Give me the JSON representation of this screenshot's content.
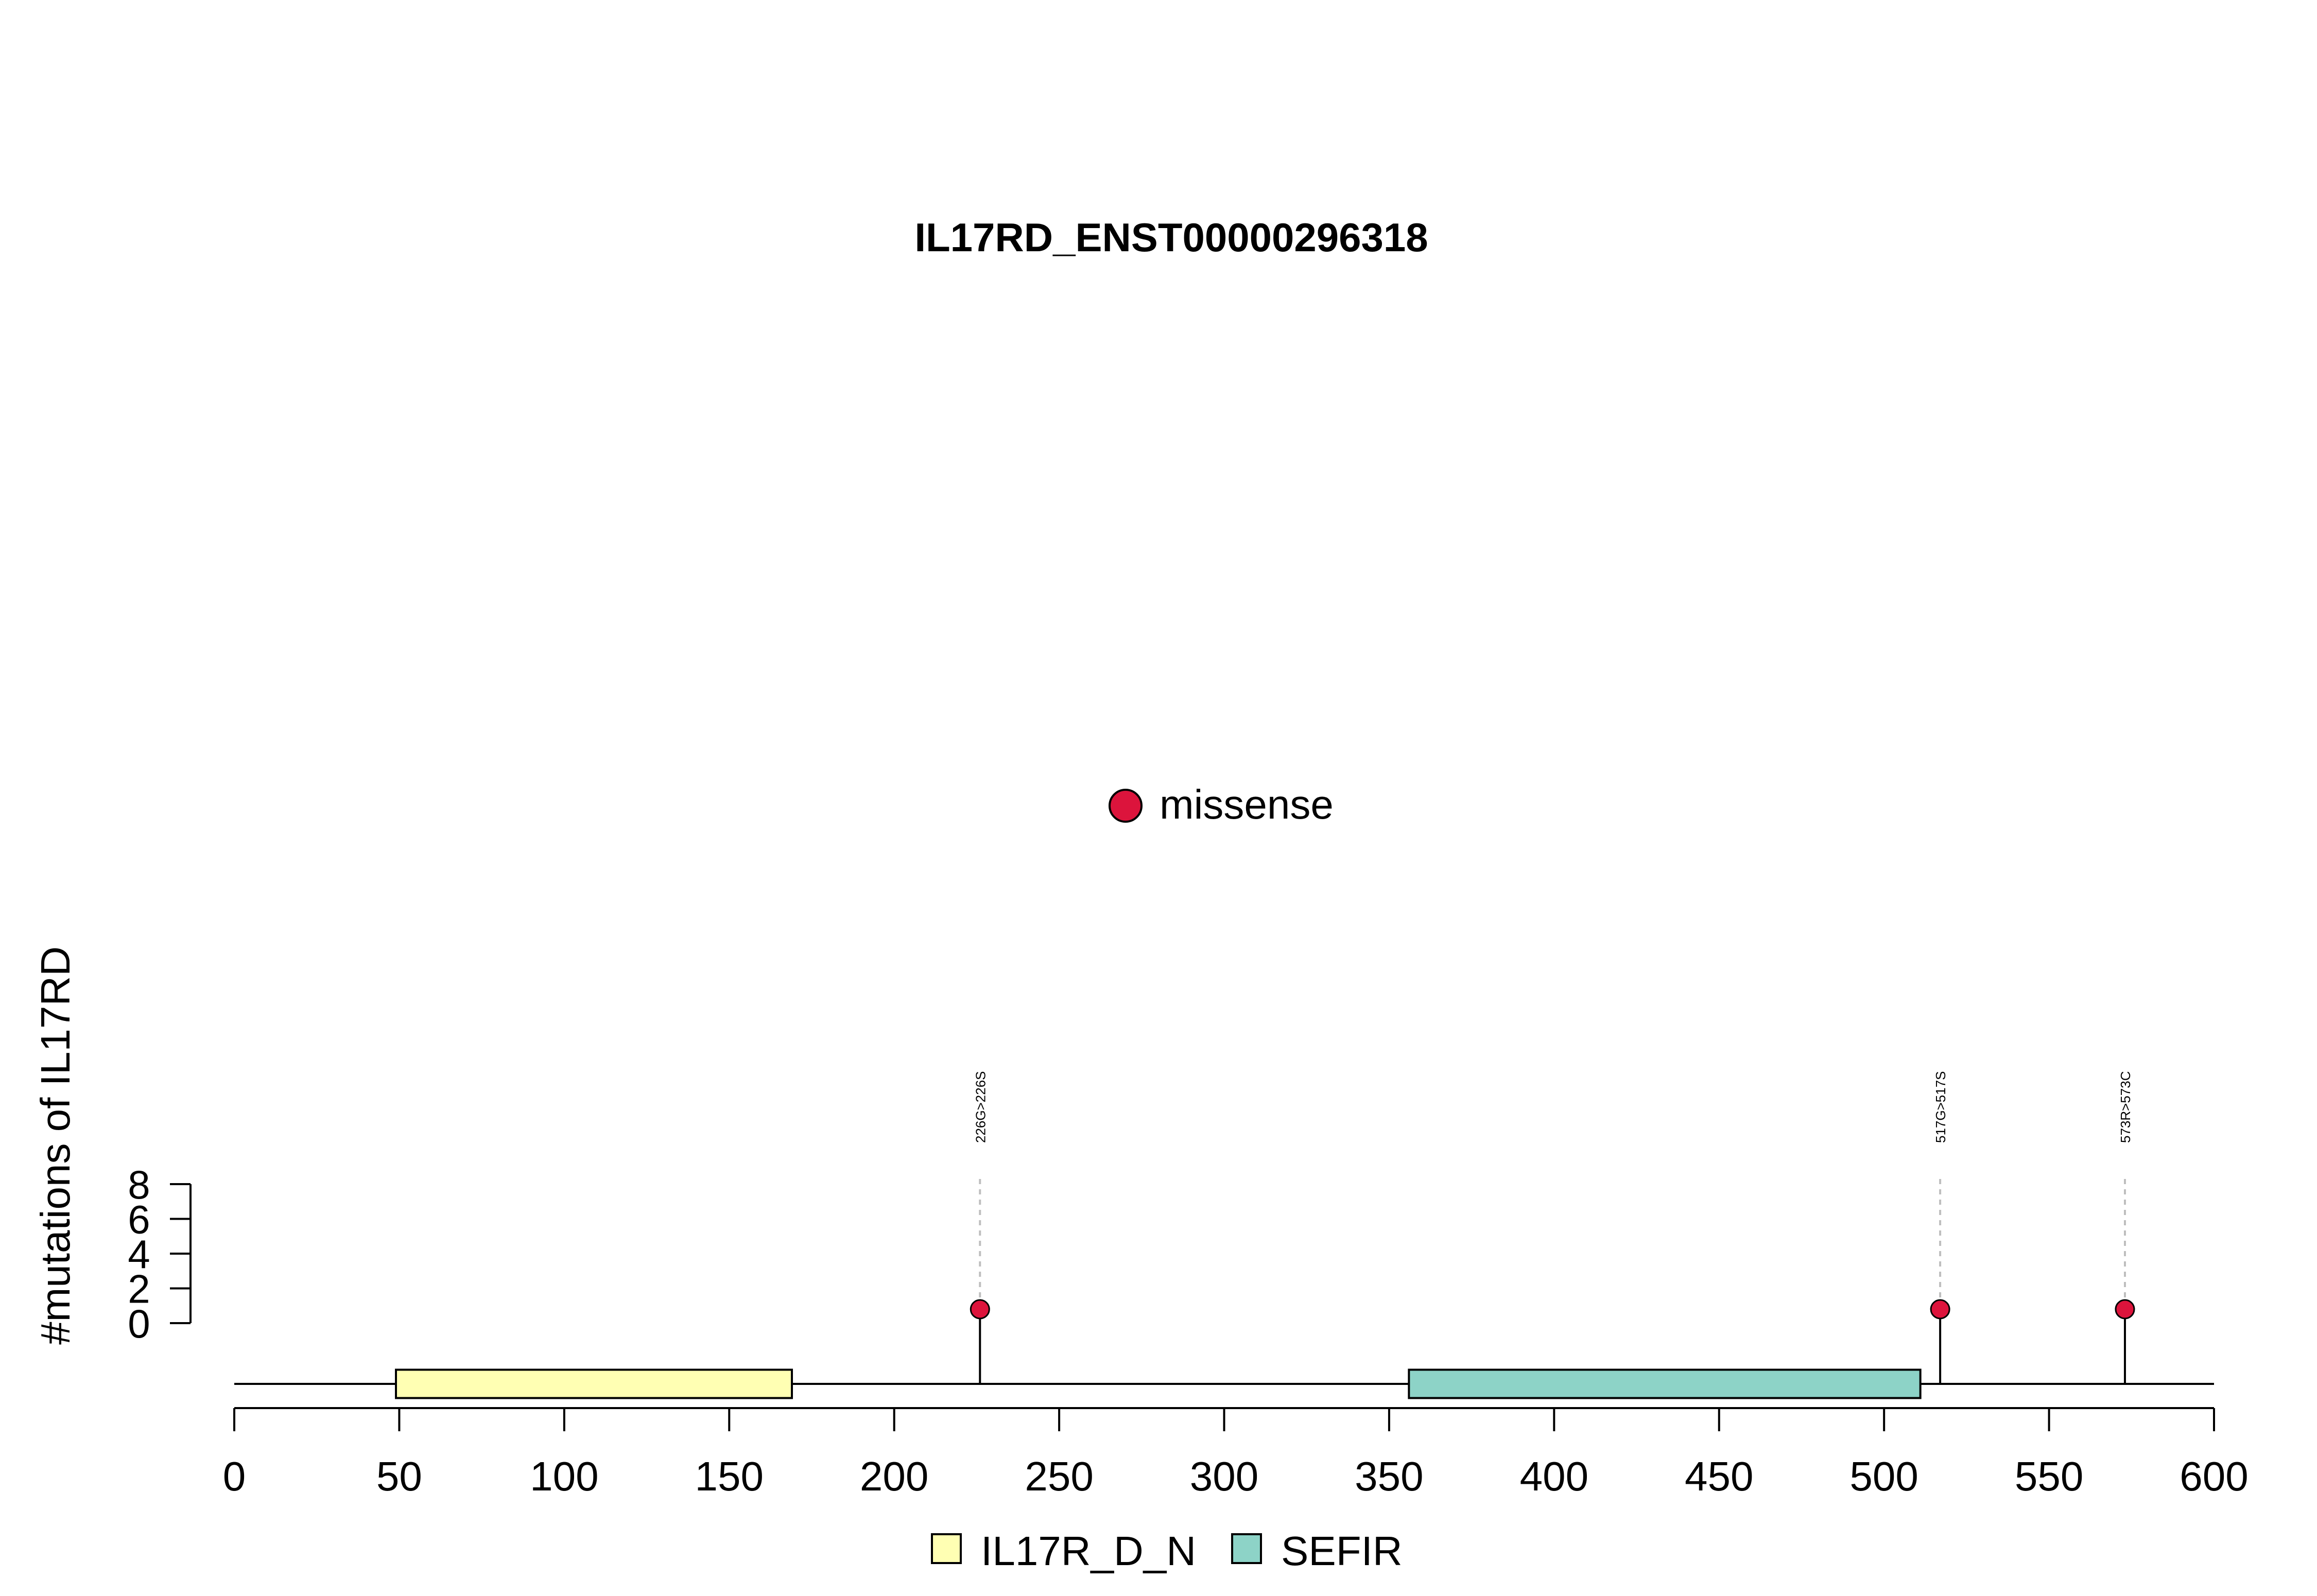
{
  "chart_data": {
    "type": "lollipop",
    "title": "IL17RD_ENST00000296318",
    "ylabel": "#mutations of IL17RD",
    "xlim": [
      0,
      600
    ],
    "x_ticks": [
      0,
      50,
      100,
      150,
      200,
      250,
      300,
      350,
      400,
      450,
      500,
      550,
      600
    ],
    "y_ticks": [
      0,
      2,
      4,
      6,
      8
    ],
    "mutations": [
      {
        "position": 226,
        "label": "226G>226S",
        "count": 1,
        "type": "missense"
      },
      {
        "position": 517,
        "label": "517G>517S",
        "count": 1,
        "type": "missense"
      },
      {
        "position": 573,
        "label": "573R>573C",
        "count": 1,
        "type": "missense"
      }
    ],
    "domains": [
      {
        "name": "IL17R_D_N",
        "start": 49,
        "end": 169,
        "color": "#ffffb3"
      },
      {
        "name": "SEFIR",
        "start": 356,
        "end": 511,
        "color": "#8dd3c7"
      }
    ],
    "mutation_legend": [
      {
        "label": "missense",
        "color": "#dc143c"
      }
    ],
    "colors": {
      "missense": "#dc143c",
      "stem": "#000000",
      "guide": "#bebebe"
    }
  }
}
